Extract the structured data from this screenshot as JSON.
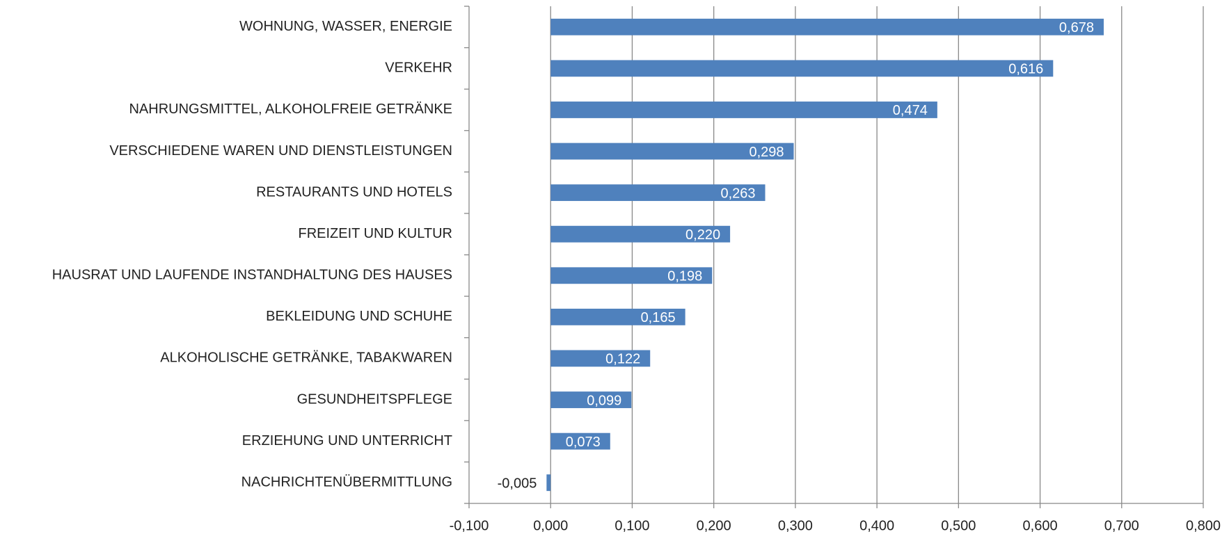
{
  "chart_data": {
    "type": "bar",
    "orientation": "horizontal",
    "categories": [
      "WOHNUNG, WASSER, ENERGIE",
      "VERKEHR",
      "NAHRUNGSMITTEL, ALKOHOLFREIE GETRÄNKE",
      "VERSCHIEDENE WAREN UND DIENSTLEISTUNGEN",
      "RESTAURANTS UND HOTELS",
      "FREIZEIT UND KULTUR",
      "HAUSRAT UND LAUFENDE INSTANDHALTUNG DES HAUSES",
      "BEKLEIDUNG UND SCHUHE",
      "ALKOHOLISCHE GETRÄNKE, TABAKWAREN",
      "GESUNDHEITSPFLEGE",
      "ERZIEHUNG UND UNTERRICHT",
      "NACHRICHTENÜBERMITTLUNG"
    ],
    "values": [
      0.678,
      0.616,
      0.474,
      0.298,
      0.263,
      0.22,
      0.198,
      0.165,
      0.122,
      0.099,
      0.073,
      -0.005
    ],
    "value_labels": [
      "0,678",
      "0,616",
      "0,474",
      "0,298",
      "0,263",
      "0,220",
      "0,198",
      "0,165",
      "0,122",
      "0,099",
      "0,073",
      "-0,005"
    ],
    "color": "#4f81bd",
    "xlim": [
      -0.1,
      0.8
    ],
    "xticks": [
      {
        "value": -0.1,
        "label": "-0,100"
      },
      {
        "value": 0,
        "label": "0,000"
      },
      {
        "value": 0.1,
        "label": "0,100"
      },
      {
        "value": 0.2,
        "label": "0,200"
      },
      {
        "value": 0.3,
        "label": "0,300"
      },
      {
        "value": 0.4,
        "label": "0,400"
      },
      {
        "value": 0.5,
        "label": "0,500"
      },
      {
        "value": 0.6,
        "label": "0,600"
      },
      {
        "value": 0.7,
        "label": "0,700"
      },
      {
        "value": 0.8,
        "label": "0,800"
      }
    ],
    "grid": true
  }
}
